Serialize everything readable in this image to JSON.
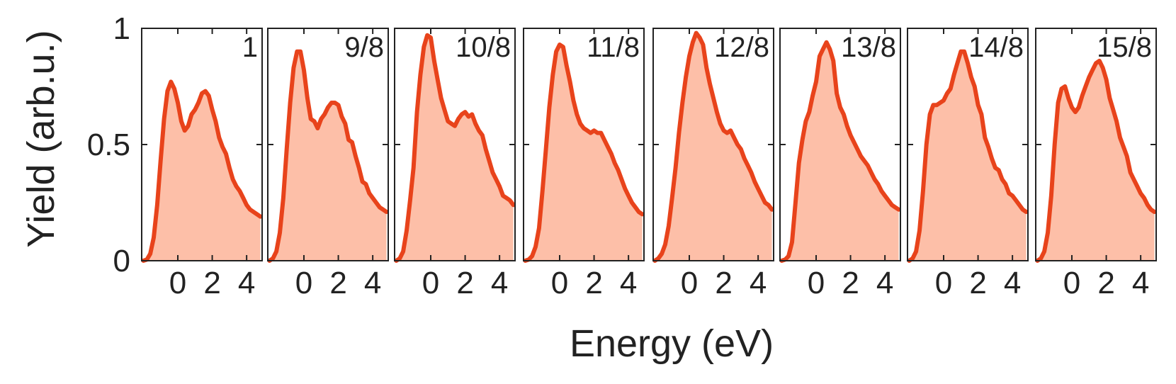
{
  "chart_data": {
    "type": "area",
    "xlabel": "Energy (eV)",
    "ylabel": "Yield (arb.u.)",
    "ylim": [
      0,
      1
    ],
    "xlim": [
      -2.1,
      4.9
    ],
    "x_ticks": [
      0,
      2,
      4
    ],
    "x_tick_labels": [
      "0",
      "2",
      "4"
    ],
    "y_ticks": [
      0,
      0.5,
      1
    ],
    "y_tick_labels": [
      "0",
      "0.5",
      "1"
    ],
    "grid": false,
    "colors": {
      "line": "#e8431b",
      "fill": "#fdbfa8",
      "frame": "#222222"
    },
    "panels": [
      {
        "label": "1",
        "x": [
          -2.0,
          -1.8,
          -1.6,
          -1.4,
          -1.2,
          -1.0,
          -0.8,
          -0.6,
          -0.4,
          -0.2,
          0.0,
          0.2,
          0.4,
          0.6,
          0.8,
          1.0,
          1.2,
          1.4,
          1.6,
          1.8,
          2.0,
          2.2,
          2.4,
          2.6,
          2.8,
          3.0,
          3.2,
          3.4,
          3.6,
          3.8,
          4.0,
          4.2,
          4.4,
          4.6,
          4.8
        ],
        "y": [
          0.0,
          0.005,
          0.03,
          0.1,
          0.24,
          0.43,
          0.61,
          0.73,
          0.77,
          0.74,
          0.68,
          0.6,
          0.56,
          0.58,
          0.63,
          0.65,
          0.68,
          0.72,
          0.73,
          0.71,
          0.65,
          0.6,
          0.53,
          0.49,
          0.46,
          0.4,
          0.35,
          0.32,
          0.3,
          0.27,
          0.24,
          0.22,
          0.21,
          0.2,
          0.19
        ]
      },
      {
        "label": "9/8",
        "x": [
          -2.0,
          -1.8,
          -1.6,
          -1.4,
          -1.2,
          -1.0,
          -0.8,
          -0.6,
          -0.4,
          -0.2,
          0.0,
          0.2,
          0.4,
          0.6,
          0.8,
          1.0,
          1.2,
          1.4,
          1.6,
          1.8,
          2.0,
          2.2,
          2.4,
          2.6,
          2.8,
          3.0,
          3.2,
          3.4,
          3.6,
          3.8,
          4.0,
          4.2,
          4.4,
          4.6,
          4.8
        ],
        "y": [
          0.0,
          0.01,
          0.04,
          0.12,
          0.27,
          0.48,
          0.68,
          0.83,
          0.9,
          0.9,
          0.82,
          0.7,
          0.61,
          0.6,
          0.57,
          0.61,
          0.63,
          0.66,
          0.68,
          0.68,
          0.67,
          0.62,
          0.59,
          0.52,
          0.51,
          0.45,
          0.4,
          0.34,
          0.33,
          0.29,
          0.27,
          0.25,
          0.23,
          0.22,
          0.21
        ]
      },
      {
        "label": "10/8",
        "x": [
          -2.0,
          -1.8,
          -1.6,
          -1.4,
          -1.2,
          -1.0,
          -0.8,
          -0.6,
          -0.4,
          -0.2,
          0.0,
          0.2,
          0.4,
          0.6,
          0.8,
          1.0,
          1.2,
          1.4,
          1.6,
          1.8,
          2.0,
          2.2,
          2.4,
          2.6,
          2.8,
          3.0,
          3.2,
          3.4,
          3.6,
          3.8,
          4.0,
          4.2,
          4.4,
          4.6,
          4.8
        ],
        "y": [
          0.0,
          0.01,
          0.04,
          0.13,
          0.26,
          0.4,
          0.64,
          0.8,
          0.92,
          0.97,
          0.96,
          0.86,
          0.78,
          0.7,
          0.65,
          0.6,
          0.59,
          0.58,
          0.61,
          0.63,
          0.64,
          0.62,
          0.63,
          0.59,
          0.56,
          0.54,
          0.48,
          0.43,
          0.38,
          0.35,
          0.32,
          0.28,
          0.27,
          0.26,
          0.24
        ]
      },
      {
        "label": "11/8",
        "x": [
          -2.0,
          -1.8,
          -1.6,
          -1.4,
          -1.2,
          -1.0,
          -0.8,
          -0.6,
          -0.4,
          -0.2,
          0.0,
          0.2,
          0.4,
          0.6,
          0.8,
          1.0,
          1.2,
          1.4,
          1.6,
          1.8,
          2.0,
          2.2,
          2.4,
          2.6,
          2.8,
          3.0,
          3.2,
          3.4,
          3.6,
          3.8,
          4.0,
          4.2,
          4.4,
          4.6,
          4.8
        ],
        "y": [
          0.0,
          0.005,
          0.02,
          0.06,
          0.14,
          0.3,
          0.48,
          0.66,
          0.8,
          0.9,
          0.93,
          0.92,
          0.84,
          0.77,
          0.69,
          0.63,
          0.59,
          0.57,
          0.56,
          0.55,
          0.56,
          0.55,
          0.55,
          0.52,
          0.49,
          0.46,
          0.42,
          0.39,
          0.35,
          0.31,
          0.28,
          0.25,
          0.23,
          0.21,
          0.2
        ]
      },
      {
        "label": "12/8",
        "x": [
          -2.0,
          -1.8,
          -1.6,
          -1.4,
          -1.2,
          -1.0,
          -0.8,
          -0.6,
          -0.4,
          -0.2,
          0.0,
          0.2,
          0.4,
          0.6,
          0.8,
          1.0,
          1.2,
          1.4,
          1.6,
          1.8,
          2.0,
          2.2,
          2.4,
          2.6,
          2.8,
          3.0,
          3.2,
          3.4,
          3.6,
          3.8,
          4.0,
          4.2,
          4.4,
          4.6,
          4.8
        ],
        "y": [
          0.0,
          0.01,
          0.03,
          0.07,
          0.15,
          0.27,
          0.4,
          0.55,
          0.68,
          0.79,
          0.88,
          0.94,
          0.98,
          0.96,
          0.93,
          0.83,
          0.76,
          0.7,
          0.64,
          0.59,
          0.56,
          0.55,
          0.56,
          0.53,
          0.5,
          0.48,
          0.44,
          0.41,
          0.38,
          0.34,
          0.31,
          0.28,
          0.25,
          0.24,
          0.22
        ]
      },
      {
        "label": "13/8",
        "x": [
          -2.0,
          -1.8,
          -1.6,
          -1.4,
          -1.2,
          -1.0,
          -0.8,
          -0.6,
          -0.4,
          -0.2,
          0.0,
          0.2,
          0.4,
          0.6,
          0.8,
          1.0,
          1.2,
          1.4,
          1.6,
          1.8,
          2.0,
          2.2,
          2.4,
          2.6,
          2.8,
          3.0,
          3.2,
          3.4,
          3.6,
          3.8,
          4.0,
          4.2,
          4.4,
          4.6,
          4.8
        ],
        "y": [
          0.0,
          0.005,
          0.02,
          0.08,
          0.25,
          0.42,
          0.52,
          0.6,
          0.64,
          0.71,
          0.77,
          0.88,
          0.91,
          0.94,
          0.91,
          0.86,
          0.72,
          0.66,
          0.63,
          0.58,
          0.54,
          0.51,
          0.48,
          0.45,
          0.43,
          0.41,
          0.38,
          0.35,
          0.33,
          0.3,
          0.28,
          0.26,
          0.24,
          0.23,
          0.22
        ]
      },
      {
        "label": "14/8",
        "x": [
          -2.0,
          -1.8,
          -1.6,
          -1.4,
          -1.2,
          -1.0,
          -0.8,
          -0.6,
          -0.4,
          -0.2,
          0.0,
          0.2,
          0.4,
          0.6,
          0.8,
          1.0,
          1.2,
          1.4,
          1.6,
          1.8,
          2.0,
          2.2,
          2.4,
          2.6,
          2.8,
          3.0,
          3.2,
          3.4,
          3.6,
          3.8,
          4.0,
          4.2,
          4.4,
          4.6,
          4.8
        ],
        "y": [
          0.0,
          0.01,
          0.04,
          0.13,
          0.3,
          0.5,
          0.63,
          0.67,
          0.67,
          0.68,
          0.69,
          0.72,
          0.74,
          0.8,
          0.85,
          0.9,
          0.9,
          0.85,
          0.79,
          0.75,
          0.67,
          0.63,
          0.53,
          0.49,
          0.44,
          0.4,
          0.39,
          0.35,
          0.33,
          0.29,
          0.28,
          0.26,
          0.24,
          0.22,
          0.21
        ]
      },
      {
        "label": "15/8",
        "x": [
          -2.0,
          -1.8,
          -1.6,
          -1.4,
          -1.2,
          -1.0,
          -0.8,
          -0.6,
          -0.4,
          -0.2,
          0.0,
          0.2,
          0.4,
          0.6,
          0.8,
          1.0,
          1.2,
          1.4,
          1.6,
          1.8,
          2.0,
          2.2,
          2.4,
          2.6,
          2.8,
          3.0,
          3.2,
          3.4,
          3.6,
          3.8,
          4.0,
          4.2,
          4.4,
          4.6,
          4.8
        ],
        "y": [
          0.0,
          0.01,
          0.04,
          0.12,
          0.28,
          0.5,
          0.68,
          0.74,
          0.75,
          0.7,
          0.66,
          0.64,
          0.66,
          0.71,
          0.75,
          0.79,
          0.82,
          0.85,
          0.86,
          0.83,
          0.78,
          0.7,
          0.65,
          0.6,
          0.53,
          0.49,
          0.45,
          0.38,
          0.35,
          0.32,
          0.29,
          0.27,
          0.24,
          0.22,
          0.21
        ]
      }
    ]
  }
}
